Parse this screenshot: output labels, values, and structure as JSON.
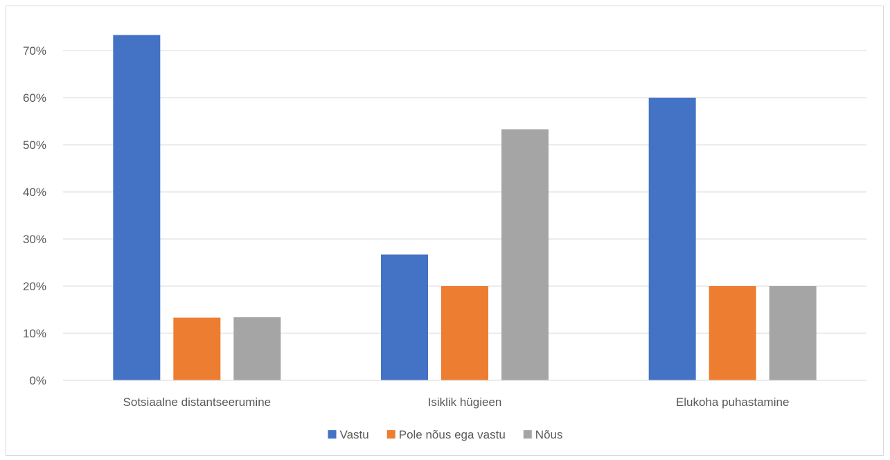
{
  "chart_data": {
    "type": "bar",
    "categories": [
      "Sotsiaalne distantseerumine",
      "Isiklik hügieen",
      "Elukoha puhastamine"
    ],
    "series": [
      {
        "name": "Vastu",
        "values": [
          73.3,
          26.7,
          60.0
        ],
        "color": "#4472C4"
      },
      {
        "name": "Pole nõus ega vastu",
        "values": [
          13.3,
          20.0,
          20.0
        ],
        "color": "#ED7D31"
      },
      {
        "name": "Nõus",
        "values": [
          13.4,
          53.3,
          20.0
        ],
        "color": "#A5A5A5"
      }
    ],
    "y_ticks": [
      "0%",
      "10%",
      "20%",
      "30%",
      "40%",
      "50%",
      "60%",
      "70%"
    ],
    "ylim": [
      0,
      75
    ],
    "title": "",
    "xlabel": "",
    "ylabel": "",
    "grid": true,
    "legend_position": "bottom"
  }
}
